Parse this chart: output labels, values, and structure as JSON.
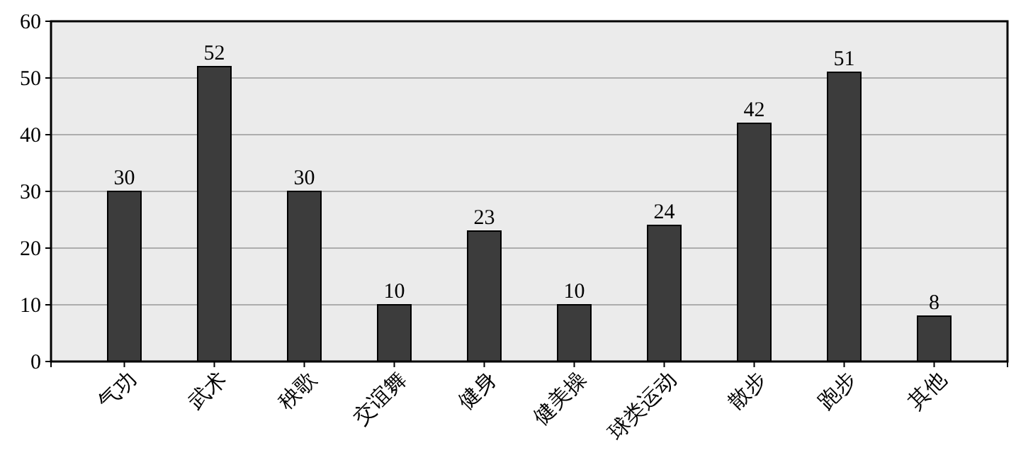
{
  "chart_data": {
    "type": "bar",
    "categories": [
      "气功",
      "武术",
      "秧歌",
      "交谊舞",
      "健身",
      "健美操",
      "球类运动",
      "散步",
      "跑步",
      "其他"
    ],
    "values": [
      30,
      52,
      30,
      10,
      23,
      10,
      24,
      42,
      51,
      8
    ],
    "color": "#3c3c3c",
    "ylim": [
      0,
      60
    ],
    "yticks": [
      0,
      10,
      20,
      30,
      40,
      50,
      60
    ],
    "grid": "y",
    "data_labels": true
  }
}
